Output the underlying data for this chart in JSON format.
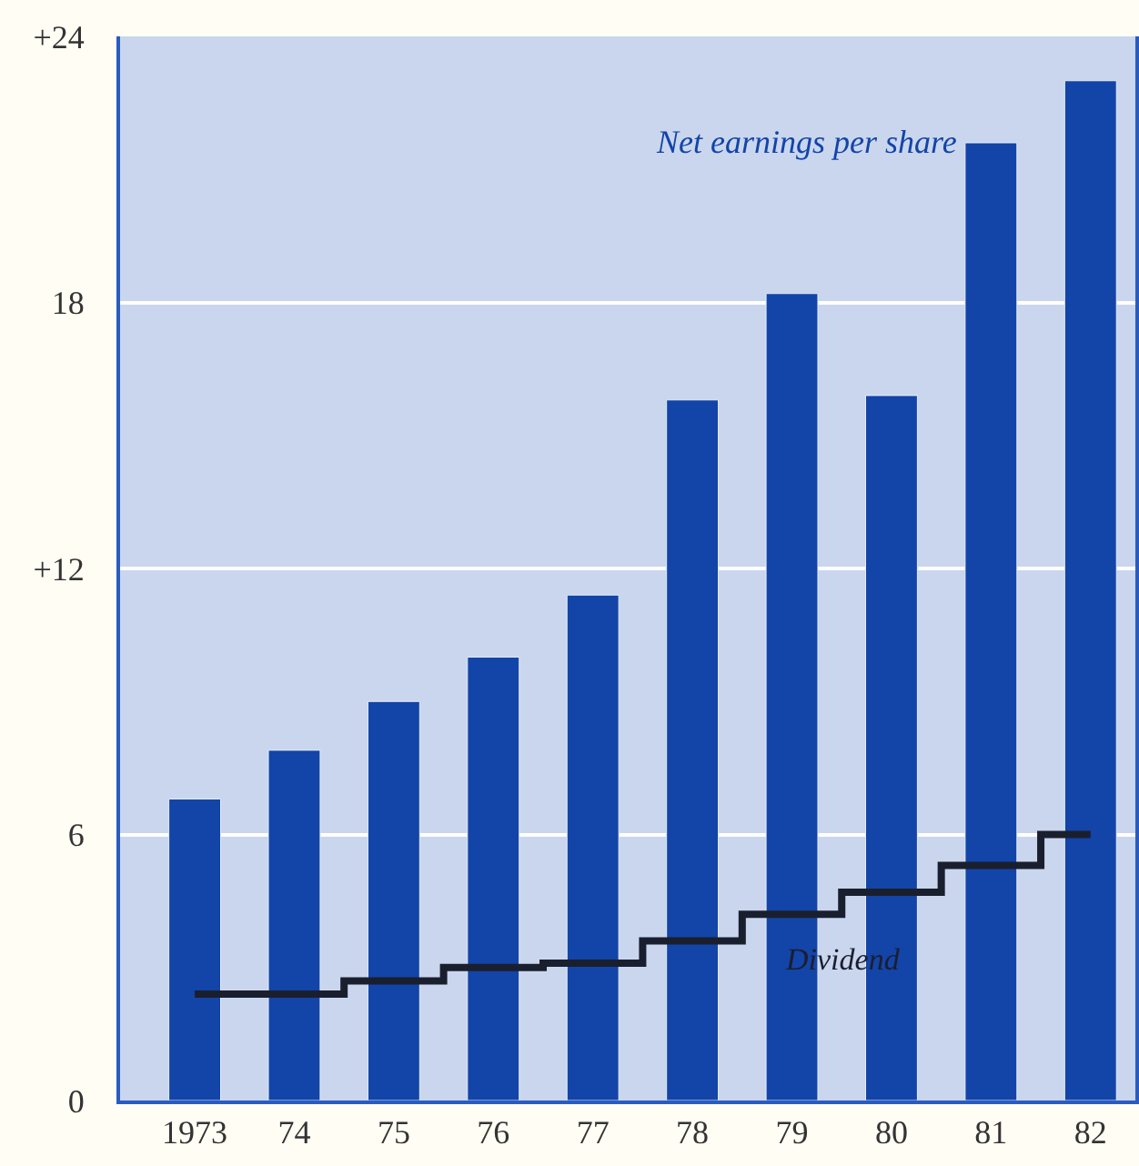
{
  "chart_data": {
    "type": "bar",
    "categories": [
      "1973",
      "74",
      "75",
      "76",
      "77",
      "78",
      "79",
      "80",
      "81",
      "82"
    ],
    "series": [
      {
        "name": "Net earnings per share",
        "color": "#1344a8",
        "values": [
          6.8,
          7.9,
          9.0,
          10.0,
          11.4,
          15.8,
          18.2,
          15.9,
          21.6,
          23.0
        ]
      },
      {
        "name": "Dividend",
        "type": "step",
        "color": "#1a1f2e",
        "values": [
          2.4,
          2.4,
          2.7,
          3.0,
          3.1,
          3.6,
          4.2,
          4.7,
          5.3,
          6.0
        ]
      }
    ],
    "ylim": [
      0,
      24
    ],
    "yticks": [
      {
        "value": 0,
        "label": "0"
      },
      {
        "value": 6,
        "label": "6"
      },
      {
        "value": 12,
        "label": "+12"
      },
      {
        "value": 18,
        "label": "18"
      },
      {
        "value": 24,
        "label": "+24"
      }
    ],
    "grid": "y",
    "legend": false
  }
}
